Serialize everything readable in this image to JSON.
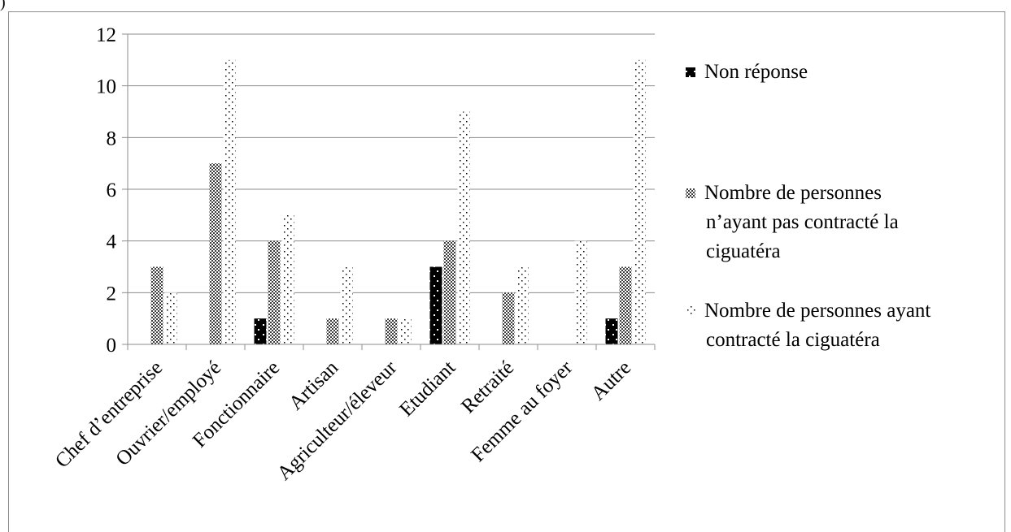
{
  "corner_mark": ")",
  "chart_data": {
    "type": "bar",
    "title": "",
    "xlabel": "",
    "ylabel": "",
    "ylim": [
      0,
      12
    ],
    "yticks": [
      0,
      2,
      4,
      6,
      8,
      10,
      12
    ],
    "grid": true,
    "legend_position": "right",
    "categories": [
      "Chef d’entreprise",
      "Ouvrier/employé",
      "Fonctionnaire",
      "Artisan",
      "Agriculteur/éleveur",
      "Etudiant",
      "Retraité",
      "Femme au foyer",
      "Autre"
    ],
    "series": [
      {
        "name": "Non réponse",
        "pattern": "black-dotted",
        "color": "#000000",
        "values": [
          0,
          0,
          1,
          0,
          0,
          3,
          0,
          0,
          1
        ]
      },
      {
        "name": "Nombre de personnes n’ayant pas contracté la ciguatéra",
        "name_lines": [
          "Nombre de personnes",
          "n’ayant pas contracté la",
          "ciguatéra"
        ],
        "pattern": "checker",
        "color": "#5a5a5a",
        "values": [
          3,
          7,
          4,
          1,
          1,
          4,
          2,
          0,
          3
        ]
      },
      {
        "name": "Nombre de personnes ayant contracté la ciguatéra",
        "name_lines": [
          "Nombre de personnes ayant",
          "contracté la ciguatéra"
        ],
        "pattern": "sparse-dots",
        "color": "#000000",
        "values": [
          2,
          11,
          5,
          3,
          1,
          9,
          3,
          4,
          11
        ]
      }
    ]
  }
}
